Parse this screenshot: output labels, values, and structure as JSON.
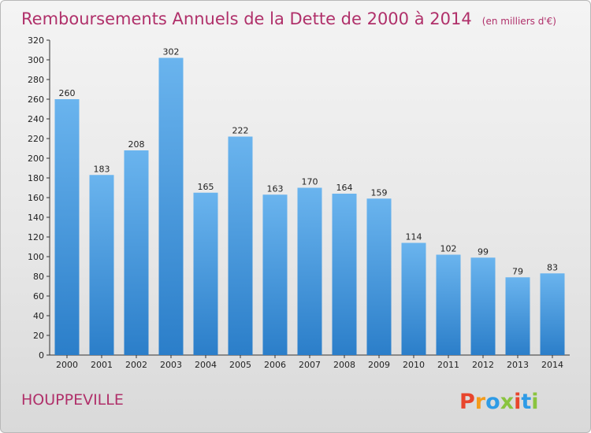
{
  "title": "Remboursements Annuels de la Dette de 2000 à 2014",
  "unit": "(en milliers d'€)",
  "commune": "HOUPPEVILLE",
  "logo": {
    "text": "Proxiti",
    "colors": [
      "#e8452c",
      "#f39b1b",
      "#2e9be6",
      "#8ac43f",
      "#e8452c",
      "#2e9be6",
      "#8ac43f"
    ]
  },
  "colors": {
    "bar_light": "#6ab4ee",
    "bar_dark": "#2b7ec9",
    "title": "#b0306a"
  },
  "chart_data": {
    "type": "bar",
    "title": "Remboursements Annuels de la Dette de 2000 à 2014",
    "subtitle": "(en milliers d'€)",
    "categories": [
      "2000",
      "2001",
      "2002",
      "2003",
      "2004",
      "2005",
      "2006",
      "2007",
      "2008",
      "2009",
      "2010",
      "2011",
      "2012",
      "2013",
      "2014"
    ],
    "values": [
      260,
      183,
      208,
      302,
      165,
      222,
      163,
      170,
      164,
      159,
      114,
      102,
      99,
      79,
      83
    ],
    "ylim": [
      0,
      320
    ],
    "yticks": [
      0,
      20,
      40,
      60,
      80,
      100,
      120,
      140,
      160,
      180,
      200,
      220,
      240,
      260,
      280,
      300,
      320
    ],
    "grid": false,
    "legend": "none"
  }
}
